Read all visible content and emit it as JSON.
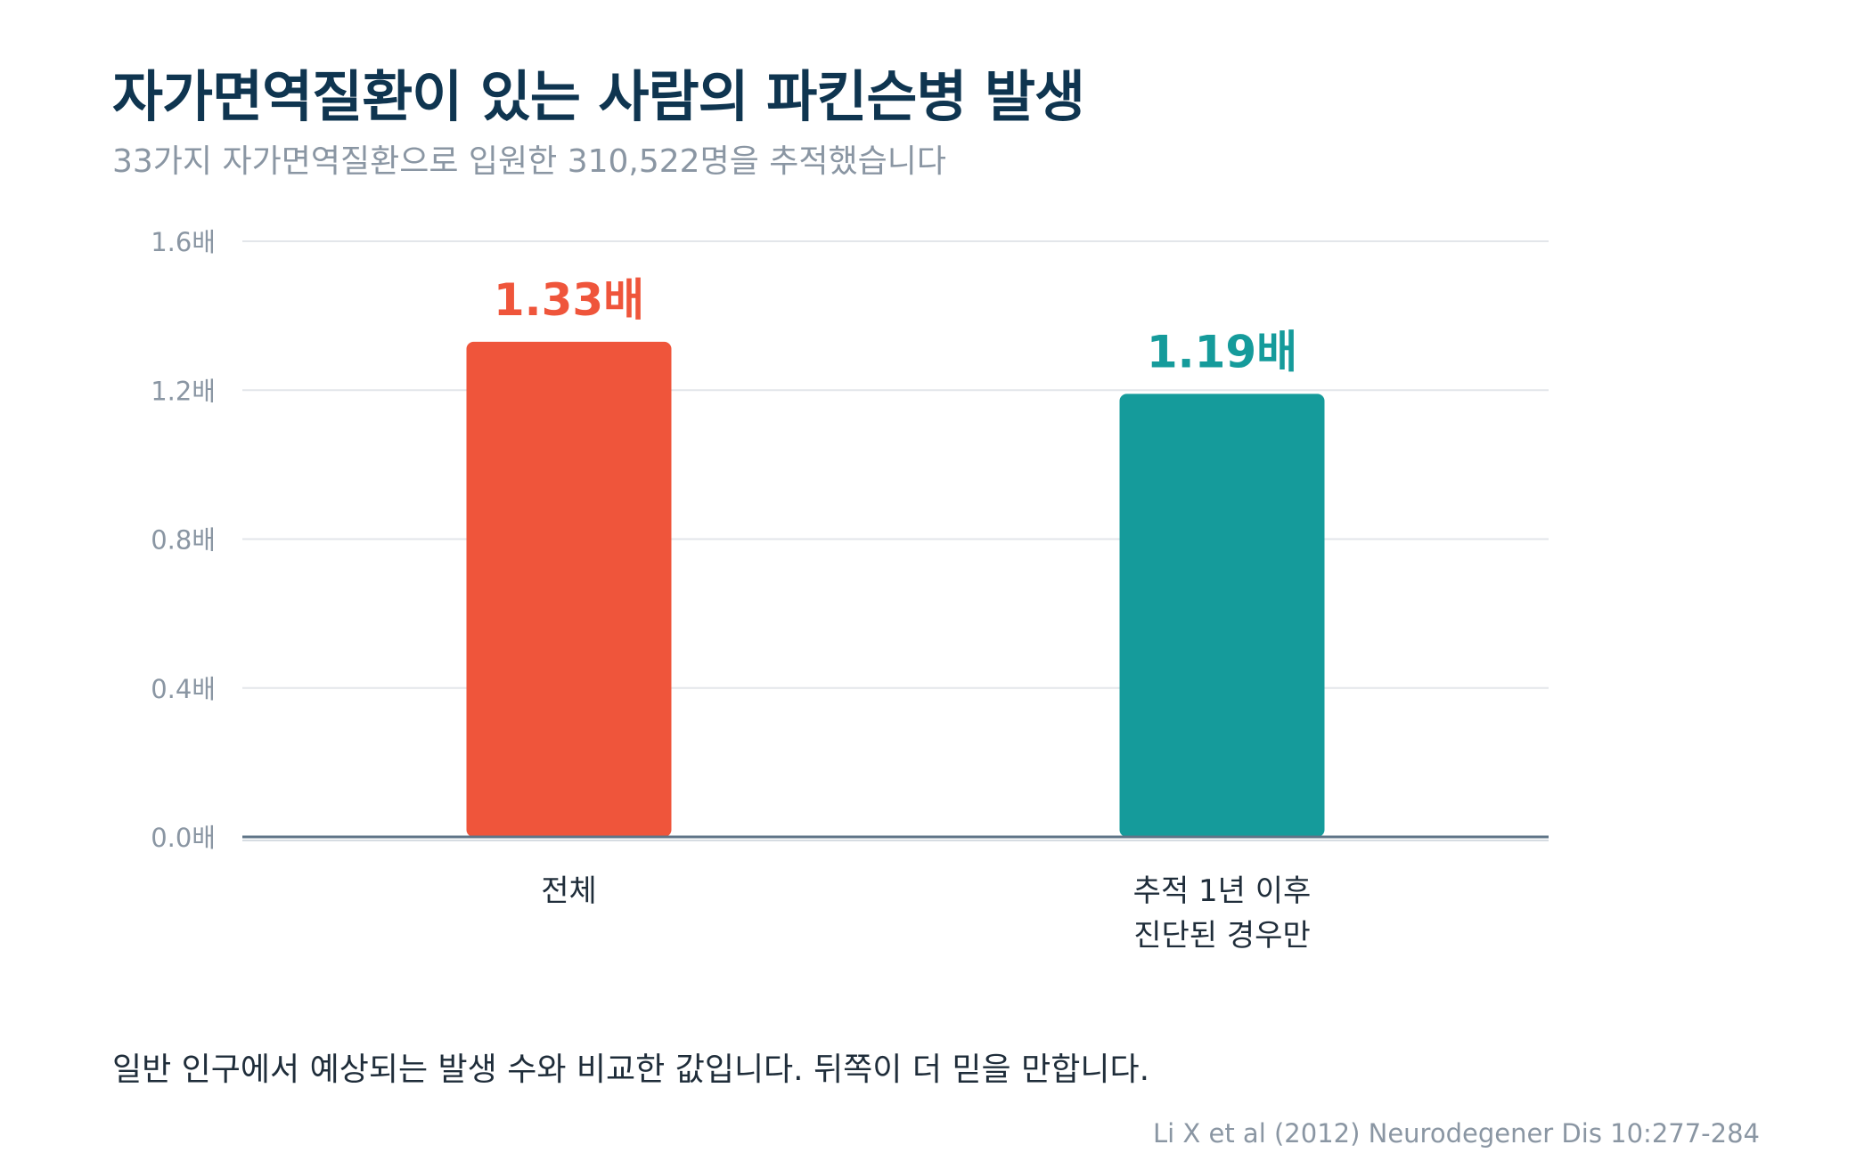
{
  "title": "자가면역질환이 있는 사람의 파킨슨병 발생",
  "subtitle": "33가지 자가면역질환으로 입원한 310,522명을 추적했습니다",
  "note": "일반 인구에서 예상되는 발생 수와 비교한 값입니다. 뒤쪽이 더 믿을 만합니다.",
  "source": "Li X et al (2012) Neurodegener Dis 10:277-284",
  "chart_data": {
    "type": "bar",
    "categories": [
      [
        "전체"
      ],
      [
        "추적 1년 이후",
        "진단된 경우만"
      ]
    ],
    "values": [
      1.33,
      1.19
    ],
    "value_labels": [
      "1.33배",
      "1.19배"
    ],
    "colors": [
      "#ef553b",
      "#159b9b"
    ],
    "ylim": [
      0,
      1.6
    ],
    "yticks": [
      0,
      0.4,
      0.8,
      1.2,
      1.6
    ],
    "ytick_labels": [
      "0.0배",
      "0.4배",
      "0.8배",
      "1.2배",
      "1.6배"
    ],
    "grid": true,
    "legend": "none"
  }
}
